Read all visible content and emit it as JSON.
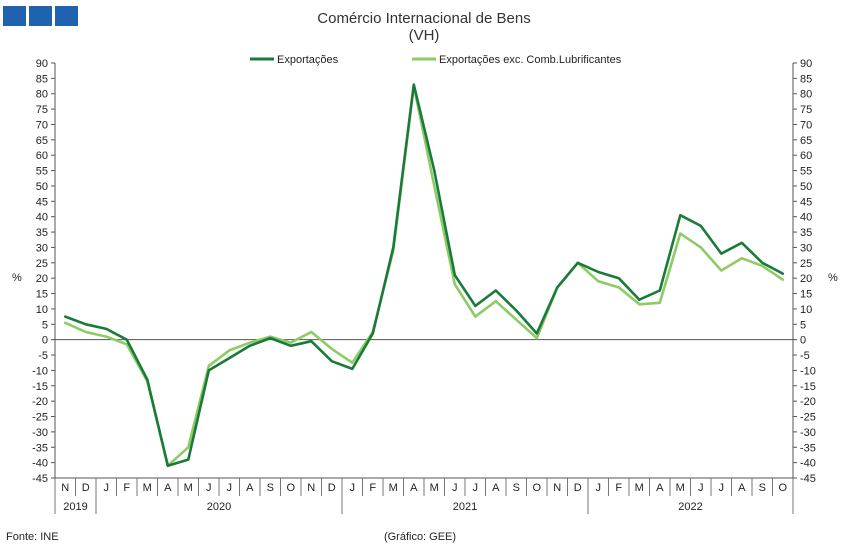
{
  "logo": {
    "colors": [
      "#1f62ad",
      "#1f62ad",
      "#1f62ad"
    ]
  },
  "chart_data": {
    "type": "line",
    "title": "Comércio Internacional de Bens",
    "subtitle": "(VH)",
    "ylabel_left": "%",
    "ylabel_right": "%",
    "ylim": [
      -45,
      90
    ],
    "ytick_step": 5,
    "grid": false,
    "legend_position": "top-center",
    "months": [
      "N",
      "D",
      "J",
      "F",
      "M",
      "A",
      "M",
      "J",
      "J",
      "A",
      "S",
      "O",
      "N",
      "D",
      "J",
      "F",
      "M",
      "A",
      "M",
      "J",
      "J",
      "A",
      "S",
      "O",
      "N",
      "D",
      "J",
      "F",
      "M",
      "A",
      "M",
      "J",
      "J",
      "A",
      "S",
      "O"
    ],
    "years": [
      {
        "label": "2019",
        "start": 0,
        "end": 1
      },
      {
        "label": "2020",
        "start": 2,
        "end": 13
      },
      {
        "label": "2021",
        "start": 14,
        "end": 25
      },
      {
        "label": "2022",
        "start": 26,
        "end": 35
      }
    ],
    "series": [
      {
        "name": "Exportações",
        "color": "#1a7a3a",
        "values": [
          7.5,
          5,
          3.5,
          0,
          -13,
          -41,
          -39,
          -10,
          -6,
          -2,
          0.5,
          -2,
          -0.5,
          -7,
          -9.5,
          2,
          30,
          83,
          55,
          21,
          11,
          16,
          9.5,
          2,
          17,
          25,
          22,
          20,
          13,
          16,
          40.5,
          37,
          28,
          31.5,
          25,
          21.5
        ]
      },
      {
        "name": "Exportações exc. Comb.Lubrificantes",
        "color": "#8dcb65",
        "values": [
          5.5,
          2.5,
          1,
          -1.5,
          -13.5,
          -41,
          -35,
          -8.5,
          -3.5,
          -1,
          1,
          -1,
          2.5,
          -3,
          -7.5,
          2.5,
          29,
          82.5,
          50,
          18,
          7.5,
          12.5,
          6.5,
          0.5,
          17,
          25,
          19,
          17,
          11.5,
          12,
          34.5,
          30,
          22.5,
          26.5,
          24,
          19.5
        ]
      }
    ]
  },
  "footer": {
    "source": "Fonte: INE",
    "credit": "(Gráfico: GEE)"
  }
}
